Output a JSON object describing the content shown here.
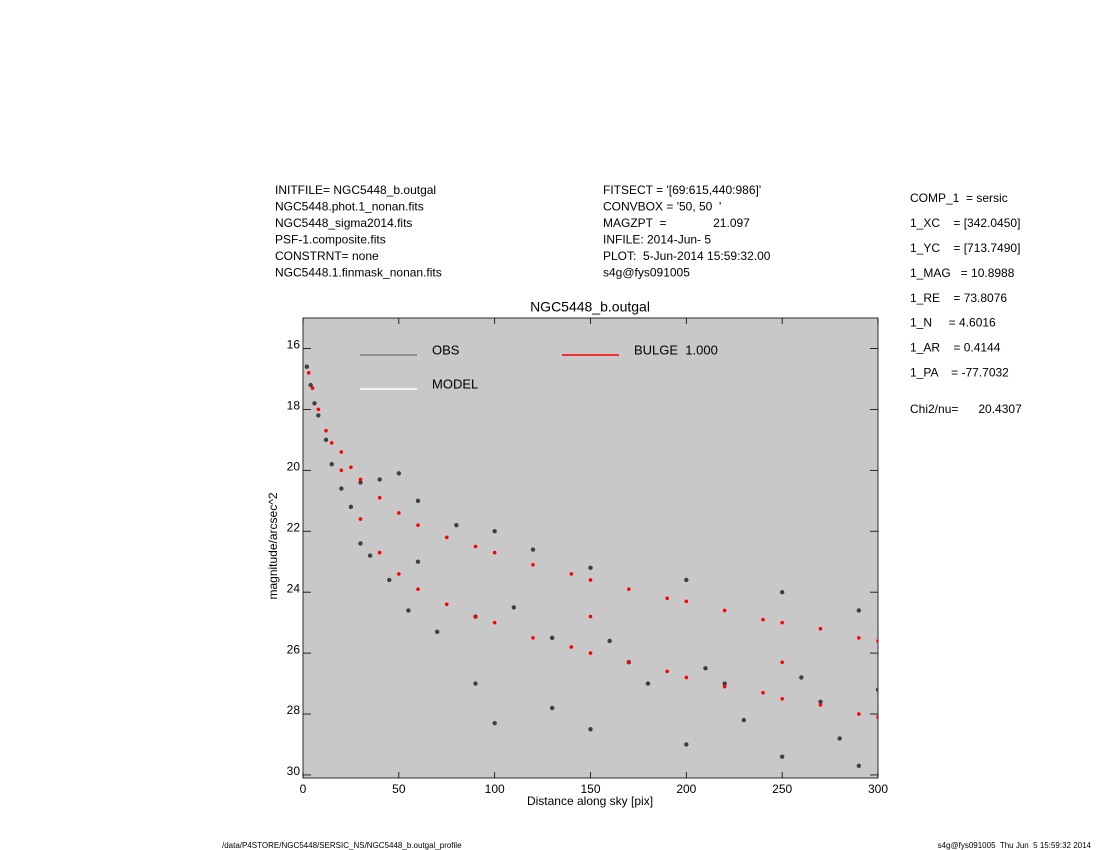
{
  "chart_data": {
    "type": "scatter",
    "title": "NGC5448_b.outgal",
    "x_label": "Distance along sky [pix]",
    "y_label": "magnitude/arcsec^2",
    "xlim": [
      0,
      300
    ],
    "ylim": [
      15,
      30.1
    ],
    "y_inverted": true,
    "xticks": [
      0,
      50,
      100,
      150,
      200,
      250,
      300
    ],
    "yticks": [
      16,
      18,
      20,
      22,
      24,
      26,
      28,
      30
    ],
    "background": "#c8c8c8",
    "legend": [
      {
        "label": "OBS",
        "color": "#808080"
      },
      {
        "label": "MODEL",
        "color": "#ffffff"
      },
      {
        "label": "BULGE  1.000",
        "color": "#ff0000"
      }
    ],
    "series": [
      {
        "color": "#404040",
        "x": [
          2,
          4,
          6,
          8,
          12,
          15,
          20,
          25,
          30,
          35,
          40,
          45,
          50,
          55,
          60,
          70,
          80,
          90,
          100,
          100,
          110,
          120,
          130,
          150,
          150,
          160,
          180,
          200,
          200,
          210,
          230,
          250,
          250,
          260,
          280,
          290,
          290,
          300,
          30,
          60,
          90,
          130,
          170,
          220,
          270
        ],
        "values": [
          16.6,
          17.2,
          17.8,
          18.2,
          19.0,
          19.8,
          20.6,
          21.2,
          20.4,
          22.8,
          20.3,
          23.6,
          20.1,
          24.6,
          21.0,
          25.3,
          21.8,
          27.0,
          22.0,
          28.3,
          24.5,
          22.6,
          27.8,
          23.2,
          28.5,
          25.6,
          27.0,
          23.6,
          29.0,
          26.5,
          28.2,
          24.0,
          29.4,
          26.8,
          28.8,
          24.6,
          29.7,
          27.2,
          22.4,
          23.0,
          24.8,
          25.5,
          26.3,
          27.0,
          27.6
        ]
      },
      {
        "color": "#ff0000",
        "x": [
          3,
          5,
          8,
          12,
          15,
          20,
          20,
          25,
          30,
          30,
          40,
          40,
          50,
          50,
          60,
          60,
          75,
          75,
          90,
          90,
          100,
          100,
          120,
          120,
          140,
          140,
          150,
          150,
          170,
          170,
          190,
          190,
          200,
          200,
          220,
          220,
          240,
          240,
          250,
          250,
          270,
          270,
          290,
          290,
          300,
          300,
          150,
          250
        ],
        "values": [
          16.8,
          17.3,
          18.0,
          18.7,
          19.1,
          19.4,
          20.0,
          19.9,
          20.3,
          21.6,
          20.9,
          22.7,
          21.4,
          23.4,
          21.8,
          23.9,
          22.2,
          24.4,
          22.5,
          24.8,
          22.7,
          25.0,
          23.1,
          25.5,
          23.4,
          25.8,
          23.6,
          26.0,
          23.9,
          26.3,
          24.2,
          26.6,
          24.3,
          26.8,
          24.6,
          27.1,
          24.9,
          27.3,
          25.0,
          27.5,
          25.2,
          27.7,
          25.5,
          28.0,
          25.6,
          28.1,
          24.8,
          26.3
        ]
      }
    ]
  },
  "header": {
    "left": [
      "INITFILE= NGC5448_b.outgal",
      "NGC5448.phot.1_nonan.fits",
      "NGC5448_sigma2014.fits",
      "PSF-1.composite.fits",
      "CONSTRNT= none",
      "NGC5448.1.finmask_nonan.fits"
    ],
    "middle": [
      "FITSECT = '[69:615,440:986]'",
      "CONVBOX = '50, 50  '",
      "MAGZPT  =              21.097",
      "INFILE: 2014-Jun- 5",
      "PLOT:  5-Jun-2014 15:59:32.00",
      "s4g@fys091005"
    ],
    "right": [
      "COMP_1  = sersic",
      "1_XC    = [342.0450]",
      "1_YC    = [713.7490]",
      "1_MAG   = 10.8988",
      "1_RE    = 73.8076",
      "1_N     = 4.6016",
      "1_AR    = 0.4144",
      "1_PA    = -77.7032"
    ],
    "chi": "Chi2/nu=      20.4307"
  },
  "footer": {
    "left": "/data/P4STORE/NGC5448/SERSIC_NS/NGC5448_b.outgal_profile",
    "right": "s4g@fys091005  Thu Jun  5 15:59:32 2014"
  }
}
